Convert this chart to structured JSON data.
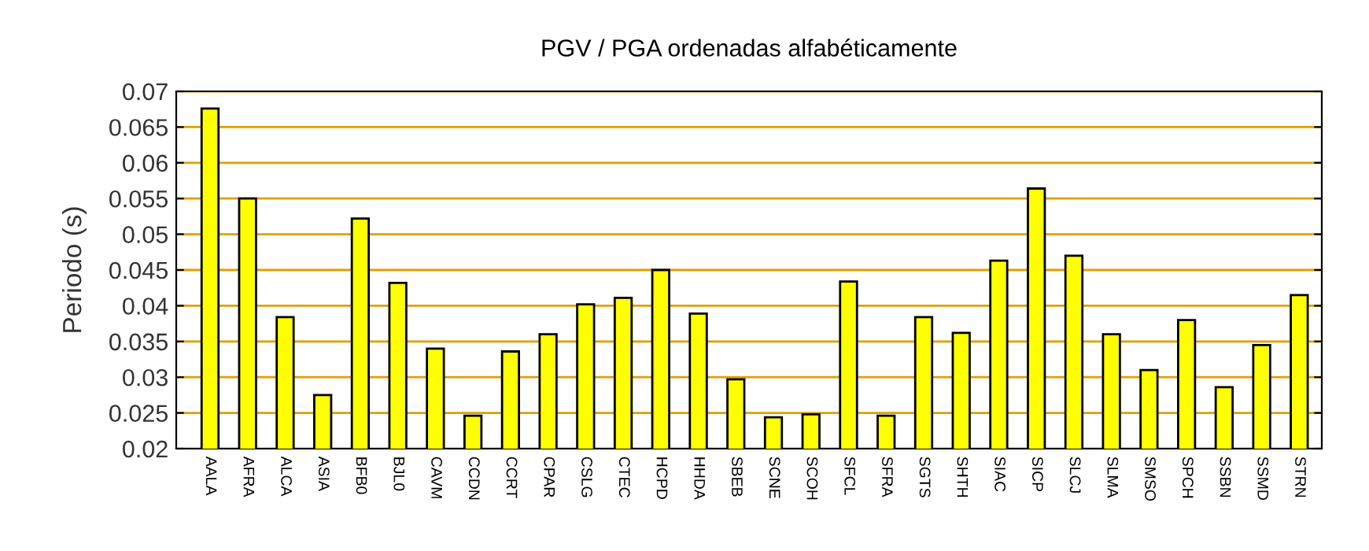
{
  "chart_data": {
    "type": "bar",
    "title": "PGV / PGA ordenadas alfabéticamente",
    "ylabel": "Periodo (s)",
    "categories": [
      "AALA",
      "AFRA",
      "ALCA",
      "ASIA",
      "BFB0",
      "BJL0",
      "CAVM",
      "CCDN",
      "CCRT",
      "CPAR",
      "CSLG",
      "CTEC",
      "HCPD",
      "HHDA",
      "SBEB",
      "SCNE",
      "SCOH",
      "SFCL",
      "SFRA",
      "SGTS",
      "SHTH",
      "SIAC",
      "SICP",
      "SLCJ",
      "SLMA",
      "SMSO",
      "SPCH",
      "SSBN",
      "SSMD",
      "STRN"
    ],
    "values": [
      0.0676,
      0.055,
      0.0384,
      0.0275,
      0.0522,
      0.0432,
      0.034,
      0.0246,
      0.0336,
      0.036,
      0.0402,
      0.0411,
      0.045,
      0.0389,
      0.0297,
      0.0244,
      0.0248,
      0.0434,
      0.0246,
      0.0384,
      0.0362,
      0.0463,
      0.0564,
      0.047,
      0.036,
      0.031,
      0.038,
      0.0286,
      0.0345,
      0.0415
    ],
    "color": "#ffff00",
    "ylim": [
      0.02,
      0.07
    ],
    "yticks": [
      0.02,
      0.025,
      0.03,
      0.035,
      0.04,
      0.045,
      0.05,
      0.055,
      0.06,
      0.065,
      0.07
    ],
    "grid": "y"
  }
}
